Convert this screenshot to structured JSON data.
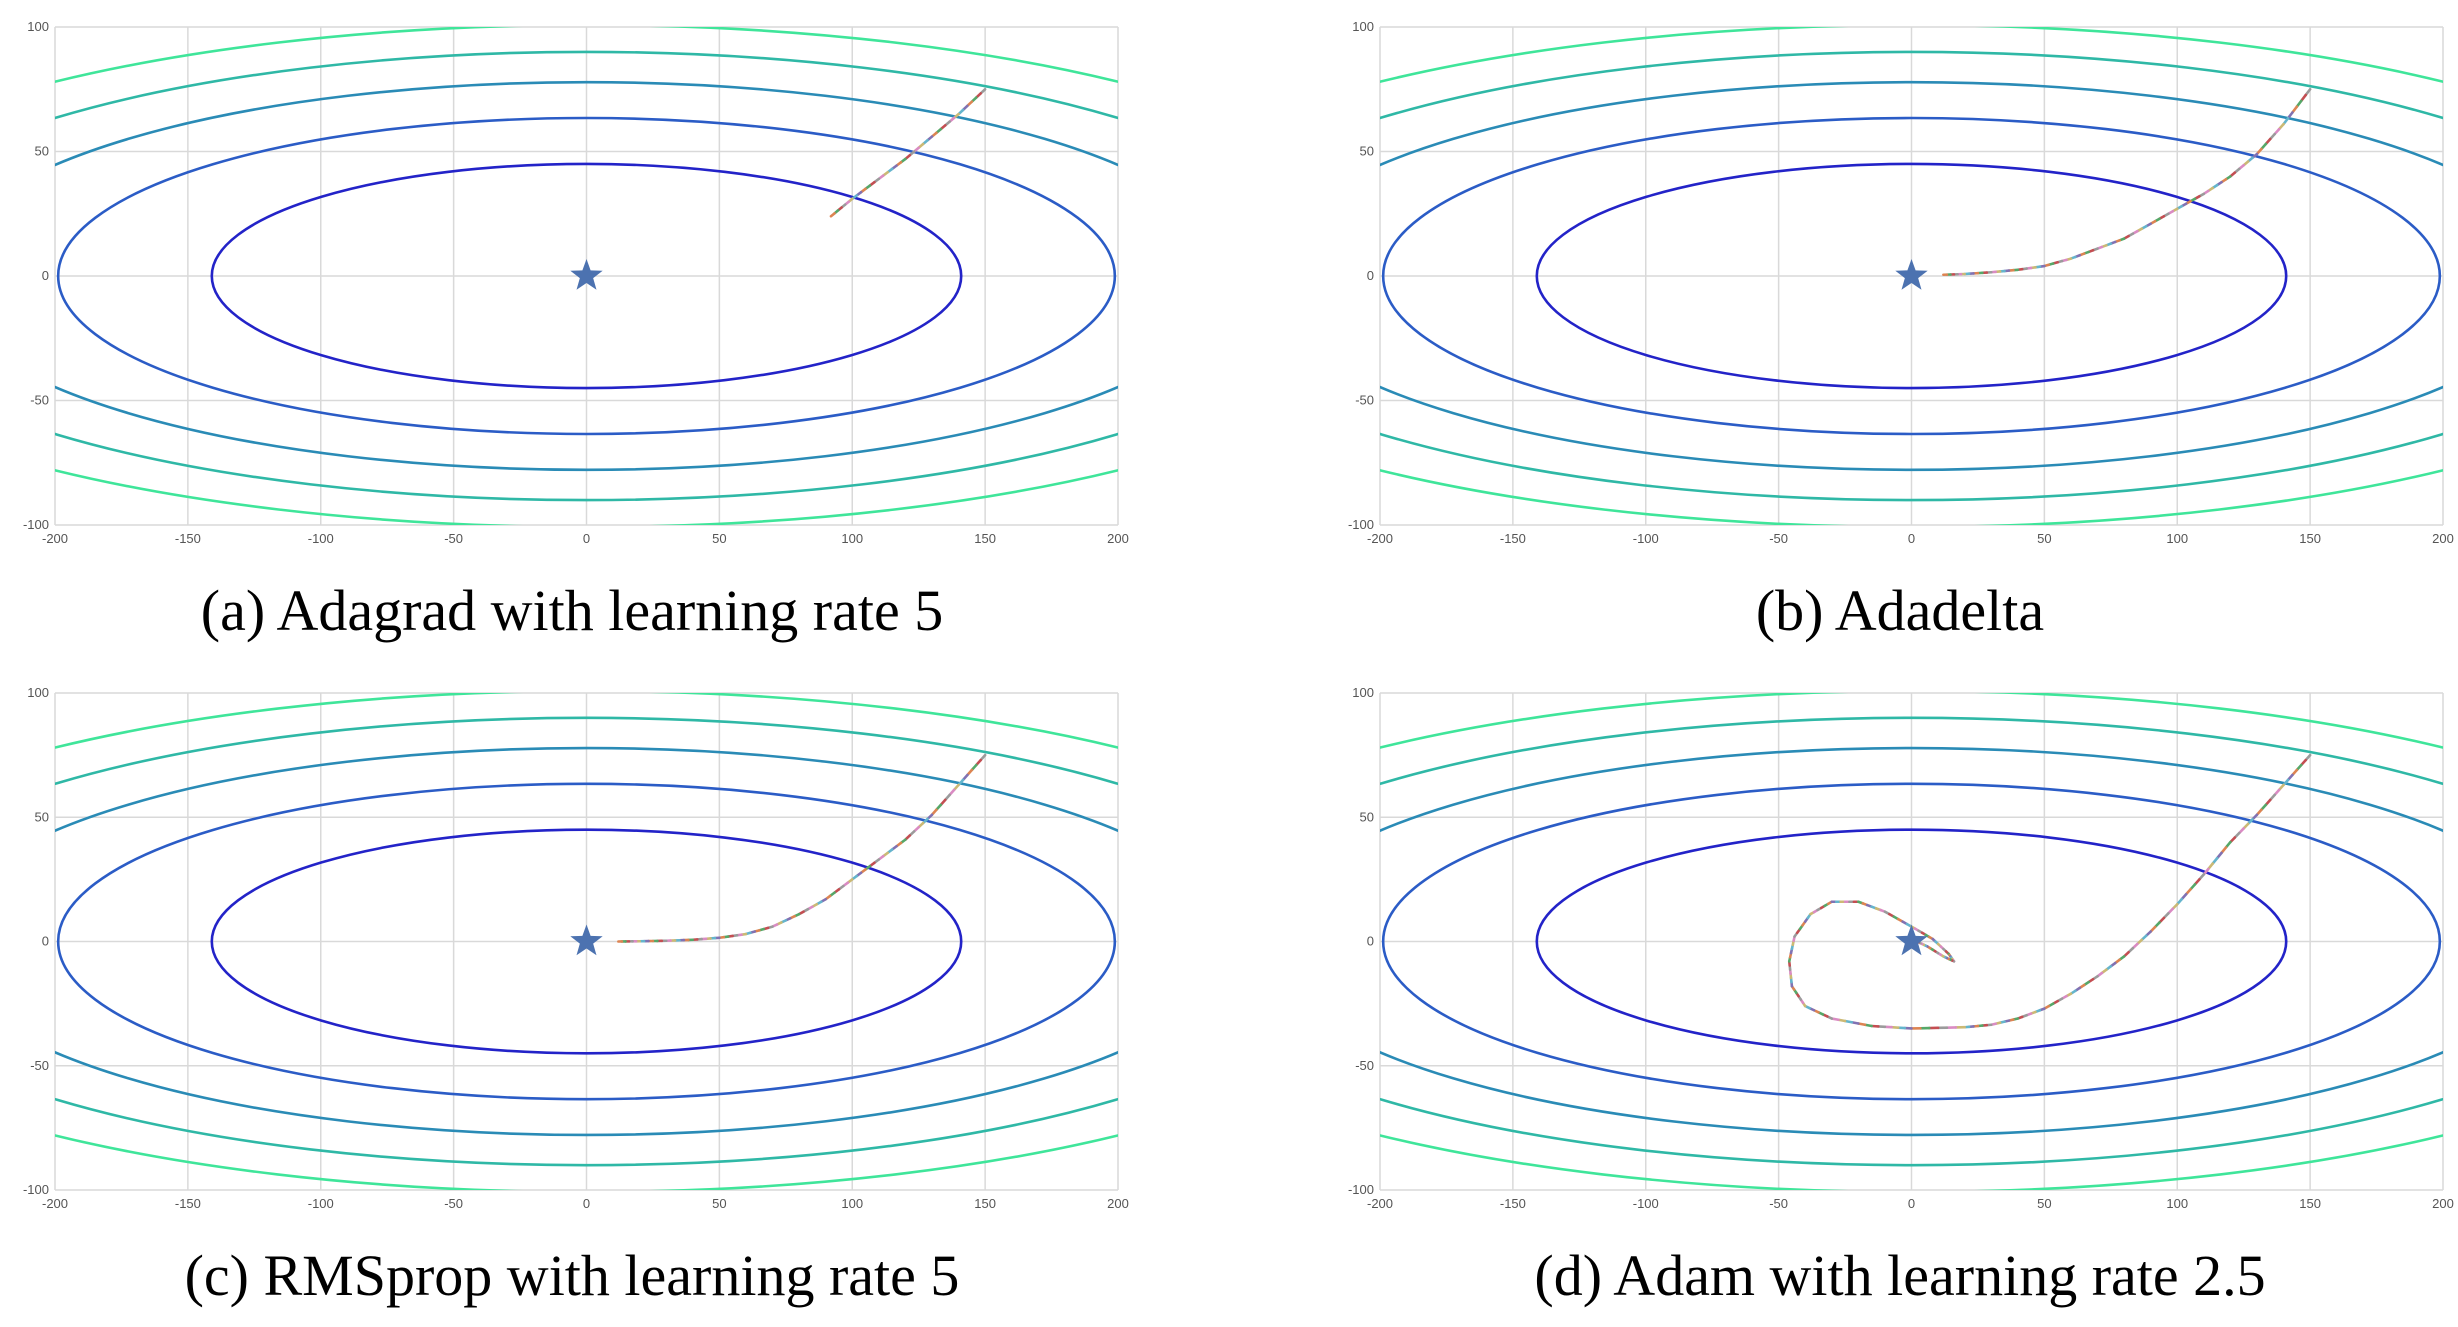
{
  "chart_data": [
    {
      "type": "line",
      "caption": "(a) Adagrad with learning rate 5",
      "xlim": [
        -200,
        200
      ],
      "ylim": [
        -100,
        100
      ],
      "xticks": [
        "-200",
        "-150",
        "-100",
        "-50",
        "0",
        "50",
        "100",
        "150",
        "200"
      ],
      "yticks": [
        "100",
        "50",
        "0",
        "-50",
        "-100"
      ],
      "grid": true,
      "contour_levels": [
        1,
        1.41,
        1.73,
        2,
        2.24
      ],
      "contour_colors": [
        "#2323c8",
        "#2b5cc6",
        "#2a8bb6",
        "#2fb8a6",
        "#3fe59a"
      ],
      "minimum": {
        "x": 0,
        "y": 0,
        "marker": "star",
        "color": "#4c72b0"
      },
      "trajectory": [
        [
          150,
          75
        ],
        [
          140,
          65
        ],
        [
          130,
          56
        ],
        [
          120,
          47
        ],
        [
          110,
          39
        ],
        [
          100,
          31
        ],
        [
          92,
          24
        ]
      ]
    },
    {
      "type": "line",
      "caption": "(b) Adadelta",
      "xlim": [
        -200,
        200
      ],
      "ylim": [
        -100,
        100
      ],
      "xticks": [
        "-200",
        "-150",
        "-100",
        "-50",
        "0",
        "50",
        "100",
        "150",
        "200"
      ],
      "yticks": [
        "100",
        "50",
        "0",
        "-50",
        "-100"
      ],
      "grid": true,
      "contour_levels": [
        1,
        1.41,
        1.73,
        2,
        2.24
      ],
      "contour_colors": [
        "#2323c8",
        "#2b5cc6",
        "#2a8bb6",
        "#2fb8a6",
        "#3fe59a"
      ],
      "minimum": {
        "x": 0,
        "y": 0,
        "marker": "star",
        "color": "#4c72b0"
      },
      "trajectory": [
        [
          150,
          75
        ],
        [
          140,
          61
        ],
        [
          130,
          49
        ],
        [
          120,
          40
        ],
        [
          110,
          33
        ],
        [
          100,
          27
        ],
        [
          90,
          21
        ],
        [
          80,
          15
        ],
        [
          70,
          11
        ],
        [
          60,
          7
        ],
        [
          50,
          4
        ],
        [
          40,
          2.5
        ],
        [
          30,
          1.5
        ],
        [
          20,
          0.8
        ],
        [
          12,
          0.5
        ]
      ]
    },
    {
      "type": "line",
      "caption": "(c) RMSprop with learning rate 5",
      "xlim": [
        -200,
        200
      ],
      "ylim": [
        -100,
        100
      ],
      "xticks": [
        "-200",
        "-150",
        "-100",
        "-50",
        "0",
        "50",
        "100",
        "150",
        "200"
      ],
      "yticks": [
        "100",
        "50",
        "0",
        "-50",
        "-100"
      ],
      "grid": true,
      "contour_levels": [
        1,
        1.41,
        1.73,
        2,
        2.24
      ],
      "contour_colors": [
        "#2323c8",
        "#2b5cc6",
        "#2a8bb6",
        "#2fb8a6",
        "#3fe59a"
      ],
      "minimum": {
        "x": 0,
        "y": 0,
        "marker": "star",
        "color": "#4c72b0"
      },
      "trajectory": [
        [
          150,
          75
        ],
        [
          140,
          63
        ],
        [
          130,
          51
        ],
        [
          120,
          41
        ],
        [
          110,
          33
        ],
        [
          100,
          25
        ],
        [
          90,
          17
        ],
        [
          80,
          11
        ],
        [
          70,
          6
        ],
        [
          60,
          3
        ],
        [
          50,
          1.5
        ],
        [
          40,
          0.7
        ],
        [
          30,
          0.3
        ],
        [
          20,
          0.1
        ],
        [
          12,
          0
        ]
      ]
    },
    {
      "type": "line",
      "caption": "(d) Adam with learning rate 2.5",
      "xlim": [
        -200,
        200
      ],
      "ylim": [
        -100,
        100
      ],
      "xticks": [
        "-200",
        "-150",
        "-100",
        "-50",
        "0",
        "50",
        "100",
        "150",
        "200"
      ],
      "yticks": [
        "100",
        "50",
        "0",
        "-50",
        "-100"
      ],
      "grid": true,
      "contour_levels": [
        1,
        1.41,
        1.73,
        2,
        2.24
      ],
      "contour_colors": [
        "#2323c8",
        "#2b5cc6",
        "#2a8bb6",
        "#2fb8a6",
        "#3fe59a"
      ],
      "minimum": {
        "x": 0,
        "y": 0,
        "marker": "star",
        "color": "#4c72b0"
      },
      "trajectory": [
        [
          150,
          75
        ],
        [
          140,
          63
        ],
        [
          130,
          51
        ],
        [
          120,
          40
        ],
        [
          110,
          27
        ],
        [
          100,
          15
        ],
        [
          90,
          4
        ],
        [
          80,
          -6
        ],
        [
          70,
          -14
        ],
        [
          60,
          -21
        ],
        [
          50,
          -27
        ],
        [
          40,
          -31
        ],
        [
          30,
          -33.5
        ],
        [
          20,
          -34.5
        ],
        [
          0,
          -35
        ],
        [
          -15,
          -34
        ],
        [
          -30,
          -31
        ],
        [
          -40,
          -26
        ],
        [
          -45,
          -18
        ],
        [
          -46,
          -8
        ],
        [
          -44,
          2
        ],
        [
          -38,
          11
        ],
        [
          -30,
          16
        ],
        [
          -20,
          16
        ],
        [
          -10,
          12
        ],
        [
          0,
          6
        ],
        [
          8,
          1
        ],
        [
          14,
          -5
        ],
        [
          16,
          -8
        ],
        [
          12,
          -6
        ],
        [
          6,
          -2
        ],
        [
          2,
          0
        ],
        [
          0,
          0
        ]
      ]
    }
  ]
}
